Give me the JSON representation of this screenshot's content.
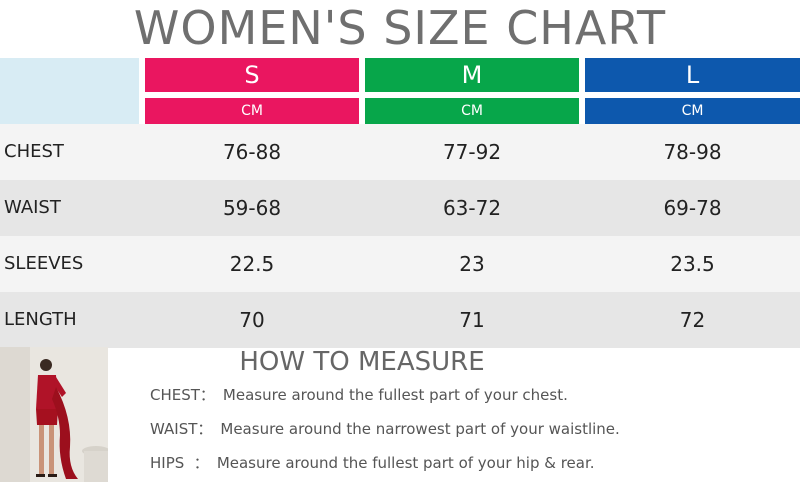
{
  "title": "WOMEN'S SIZE CHART",
  "sizes": [
    {
      "label": "S",
      "unit": "CM",
      "color": "#ea1660"
    },
    {
      "label": "M",
      "unit": "CM",
      "color": "#07a64a"
    },
    {
      "label": "L",
      "unit": "CM",
      "color": "#0d58ad"
    }
  ],
  "rows": [
    {
      "label": "CHEST",
      "values": [
        "76-88",
        "77-92",
        "78-98"
      ],
      "bg": "#f4f4f4"
    },
    {
      "label": "WAIST",
      "values": [
        "59-68",
        "63-72",
        "69-78"
      ],
      "bg": "#e6e6e6"
    },
    {
      "label": "SLEEVES",
      "values": [
        "22.5",
        "23",
        "23.5"
      ],
      "bg": "#f4f4f4"
    },
    {
      "label": "LENGTH",
      "values": [
        "70",
        "71",
        "72"
      ],
      "bg": "#e6e6e6"
    }
  ],
  "how_to": {
    "title": "HOW TO MEASURE",
    "items": [
      {
        "key": "CHEST：",
        "text": "Measure around the fullest part of your chest."
      },
      {
        "key": "WAIST：",
        "text": "Measure around the narrowest part of your waistline."
      },
      {
        "key": "HIPS  ：",
        "text": "Measure around the fullest part of your hip & rear."
      }
    ]
  }
}
